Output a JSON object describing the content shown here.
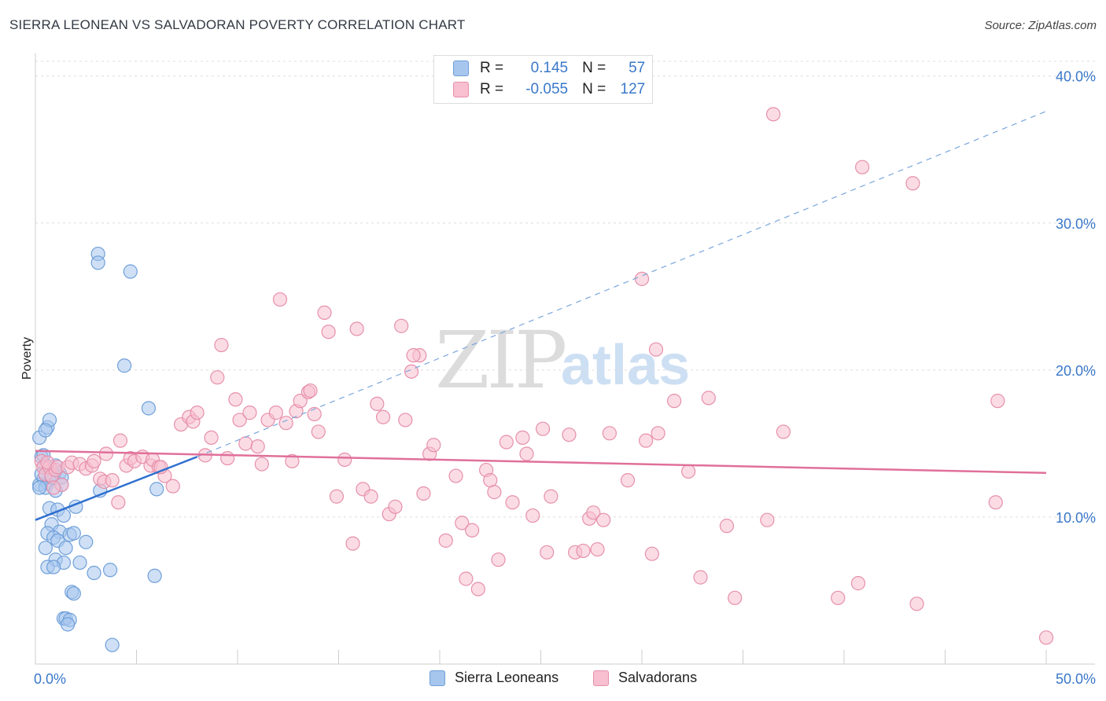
{
  "header": {
    "title": "SIERRA LEONEAN VS SALVADORAN POVERTY CORRELATION CHART",
    "source": "Source: ZipAtlas.com"
  },
  "watermark": {
    "zip": "ZIP",
    "atlas": "atlas"
  },
  "legend": {
    "rows": [
      {
        "r_label": "R =",
        "r_value": "0.145",
        "n_label": "N =",
        "n_value": "57",
        "color": "#a7c6ee",
        "edge": "#6f9fd8"
      },
      {
        "r_label": "R =",
        "r_value": "-0.055",
        "n_label": "N =",
        "n_value": "127",
        "color": "#f7bfd0",
        "edge": "#e690ab"
      }
    ]
  },
  "bottom_legend": {
    "items": [
      {
        "label": "Sierra Leoneans",
        "color": "#a7c6ee",
        "edge": "#6f9fd8"
      },
      {
        "label": "Salvadorans",
        "color": "#f7bfd0",
        "edge": "#e690ab"
      }
    ]
  },
  "chart_data": {
    "type": "scatter",
    "title": "SIERRA LEONEAN VS SALVADORAN POVERTY CORRELATION CHART",
    "xlabel": "",
    "ylabel": "Poverty",
    "xlim": [
      0,
      50
    ],
    "ylim": [
      0,
      41
    ],
    "x_tick_labels": [
      "0.0%",
      "50.0%"
    ],
    "y_ticks": [
      10,
      20,
      30,
      40
    ],
    "y_tick_labels": [
      "10.0%",
      "20.0%",
      "30.0%",
      "40.0%"
    ],
    "grid": true,
    "series": [
      {
        "name": "Sierra Leoneans",
        "fill": "#a7c6ee",
        "stroke": "#6f9fd8",
        "trend_color": "#2e6fcf",
        "trend": {
          "x0": 0,
          "y0": 9.8,
          "x1": 8,
          "y1": 14.1,
          "dash_to_x": 50,
          "dash_to_y": 37.6
        },
        "points": [
          [
            0.2,
            15.4
          ],
          [
            0.6,
            16.1
          ],
          [
            0.7,
            16.6
          ],
          [
            0.3,
            14.1
          ],
          [
            0.5,
            13.5
          ],
          [
            0.8,
            13.2
          ],
          [
            1.0,
            13.5
          ],
          [
            1.2,
            13.0
          ],
          [
            0.4,
            12.6
          ],
          [
            0.6,
            12.3
          ],
          [
            0.9,
            12.9
          ],
          [
            1.3,
            12.7
          ],
          [
            0.2,
            12.2
          ],
          [
            0.5,
            12.0
          ],
          [
            1.0,
            11.8
          ],
          [
            0.3,
            12.9
          ],
          [
            0.7,
            10.6
          ],
          [
            1.1,
            10.5
          ],
          [
            1.4,
            10.1
          ],
          [
            2.0,
            10.7
          ],
          [
            0.8,
            9.5
          ],
          [
            1.2,
            9.0
          ],
          [
            0.6,
            8.9
          ],
          [
            0.9,
            8.6
          ],
          [
            1.1,
            8.4
          ],
          [
            1.7,
            8.8
          ],
          [
            1.9,
            8.9
          ],
          [
            2.5,
            8.3
          ],
          [
            0.5,
            7.9
          ],
          [
            1.5,
            7.9
          ],
          [
            1.0,
            7.1
          ],
          [
            1.4,
            6.9
          ],
          [
            2.2,
            6.9
          ],
          [
            0.6,
            6.6
          ],
          [
            0.9,
            6.6
          ],
          [
            2.9,
            6.2
          ],
          [
            3.7,
            6.4
          ],
          [
            5.9,
            6.0
          ],
          [
            1.8,
            4.9
          ],
          [
            1.9,
            4.8
          ],
          [
            1.4,
            3.1
          ],
          [
            1.5,
            3.1
          ],
          [
            1.7,
            3.0
          ],
          [
            1.6,
            2.7
          ],
          [
            3.8,
            1.3
          ],
          [
            3.1,
            27.9
          ],
          [
            3.1,
            27.3
          ],
          [
            4.7,
            26.7
          ],
          [
            4.4,
            20.3
          ],
          [
            5.6,
            17.4
          ],
          [
            3.2,
            11.8
          ],
          [
            6.0,
            11.9
          ],
          [
            0.2,
            12.0
          ],
          [
            0.4,
            14.2
          ],
          [
            0.8,
            12.7
          ],
          [
            1.3,
            12.2
          ],
          [
            0.5,
            15.9
          ]
        ]
      },
      {
        "name": "Salvadorans",
        "fill": "#f7bfd0",
        "stroke": "#e690ab",
        "trend_color": "#e0709a",
        "trend": {
          "x0": 0,
          "y0": 14.5,
          "x1": 50,
          "y1": 13.0
        },
        "points": [
          [
            0.3,
            13.8
          ],
          [
            0.4,
            13.4
          ],
          [
            0.5,
            12.9
          ],
          [
            0.7,
            13.4
          ],
          [
            0.8,
            12.8
          ],
          [
            1.0,
            13.2
          ],
          [
            1.3,
            12.2
          ],
          [
            0.9,
            12.0
          ],
          [
            0.6,
            13.7
          ],
          [
            1.1,
            13.4
          ],
          [
            1.6,
            13.4
          ],
          [
            1.8,
            13.7
          ],
          [
            2.2,
            13.6
          ],
          [
            2.5,
            13.3
          ],
          [
            2.8,
            13.5
          ],
          [
            2.9,
            13.8
          ],
          [
            3.2,
            12.6
          ],
          [
            3.4,
            12.4
          ],
          [
            3.8,
            12.5
          ],
          [
            4.1,
            11.0
          ],
          [
            4.5,
            13.5
          ],
          [
            4.7,
            14.0
          ],
          [
            4.9,
            13.8
          ],
          [
            5.3,
            14.1
          ],
          [
            5.7,
            13.5
          ],
          [
            5.8,
            13.9
          ],
          [
            6.1,
            13.4
          ],
          [
            6.4,
            12.8
          ],
          [
            6.8,
            12.1
          ],
          [
            7.2,
            16.3
          ],
          [
            7.6,
            16.8
          ],
          [
            7.8,
            16.5
          ],
          [
            8.0,
            17.1
          ],
          [
            8.4,
            14.2
          ],
          [
            8.7,
            15.4
          ],
          [
            9.0,
            19.5
          ],
          [
            9.2,
            21.7
          ],
          [
            9.5,
            14.0
          ],
          [
            9.9,
            18.0
          ],
          [
            10.1,
            16.6
          ],
          [
            10.4,
            15.0
          ],
          [
            10.6,
            17.1
          ],
          [
            11.0,
            14.8
          ],
          [
            11.2,
            13.6
          ],
          [
            11.5,
            16.6
          ],
          [
            11.9,
            17.1
          ],
          [
            12.1,
            24.8
          ],
          [
            12.4,
            16.4
          ],
          [
            12.7,
            13.8
          ],
          [
            12.9,
            17.2
          ],
          [
            13.1,
            17.9
          ],
          [
            13.5,
            18.5
          ],
          [
            13.8,
            17.0
          ],
          [
            14.0,
            15.8
          ],
          [
            14.3,
            23.9
          ],
          [
            14.5,
            22.6
          ],
          [
            14.9,
            11.4
          ],
          [
            15.3,
            13.9
          ],
          [
            15.7,
            8.2
          ],
          [
            15.9,
            22.8
          ],
          [
            16.2,
            11.9
          ],
          [
            16.6,
            11.4
          ],
          [
            16.9,
            17.7
          ],
          [
            17.2,
            16.8
          ],
          [
            17.5,
            10.2
          ],
          [
            17.8,
            10.7
          ],
          [
            18.1,
            23.0
          ],
          [
            18.3,
            16.6
          ],
          [
            18.6,
            19.9
          ],
          [
            19.0,
            21.0
          ],
          [
            19.2,
            11.6
          ],
          [
            19.5,
            14.3
          ],
          [
            19.7,
            14.9
          ],
          [
            20.3,
            8.4
          ],
          [
            20.8,
            12.8
          ],
          [
            21.1,
            9.6
          ],
          [
            21.3,
            5.8
          ],
          [
            21.6,
            9.1
          ],
          [
            21.9,
            5.1
          ],
          [
            22.3,
            13.2
          ],
          [
            22.5,
            12.5
          ],
          [
            22.7,
            11.7
          ],
          [
            22.9,
            7.1
          ],
          [
            23.3,
            15.1
          ],
          [
            23.6,
            11.0
          ],
          [
            24.1,
            15.4
          ],
          [
            24.3,
            14.3
          ],
          [
            24.6,
            10.1
          ],
          [
            25.1,
            16.0
          ],
          [
            25.3,
            7.6
          ],
          [
            25.5,
            11.4
          ],
          [
            26.4,
            15.6
          ],
          [
            26.7,
            7.6
          ],
          [
            27.1,
            7.7
          ],
          [
            27.4,
            9.9
          ],
          [
            27.6,
            10.3
          ],
          [
            27.8,
            7.8
          ],
          [
            28.1,
            9.8
          ],
          [
            28.4,
            15.7
          ],
          [
            29.3,
            12.5
          ],
          [
            30.0,
            26.2
          ],
          [
            30.2,
            15.2
          ],
          [
            30.5,
            7.5
          ],
          [
            30.7,
            21.4
          ],
          [
            30.8,
            15.7
          ],
          [
            31.6,
            17.9
          ],
          [
            32.3,
            13.1
          ],
          [
            32.9,
            5.9
          ],
          [
            33.3,
            18.1
          ],
          [
            34.2,
            9.4
          ],
          [
            34.6,
            4.5
          ],
          [
            36.2,
            9.8
          ],
          [
            36.5,
            37.4
          ],
          [
            37.0,
            15.8
          ],
          [
            39.7,
            4.5
          ],
          [
            40.7,
            5.5
          ],
          [
            40.9,
            33.8
          ],
          [
            43.4,
            32.7
          ],
          [
            43.6,
            4.1
          ],
          [
            47.5,
            11.0
          ],
          [
            47.6,
            17.9
          ],
          [
            50.0,
            1.8
          ],
          [
            4.2,
            15.2
          ],
          [
            6.2,
            13.4
          ],
          [
            3.5,
            14.3
          ],
          [
            18.7,
            21.0
          ],
          [
            13.6,
            18.6
          ]
        ]
      }
    ]
  }
}
